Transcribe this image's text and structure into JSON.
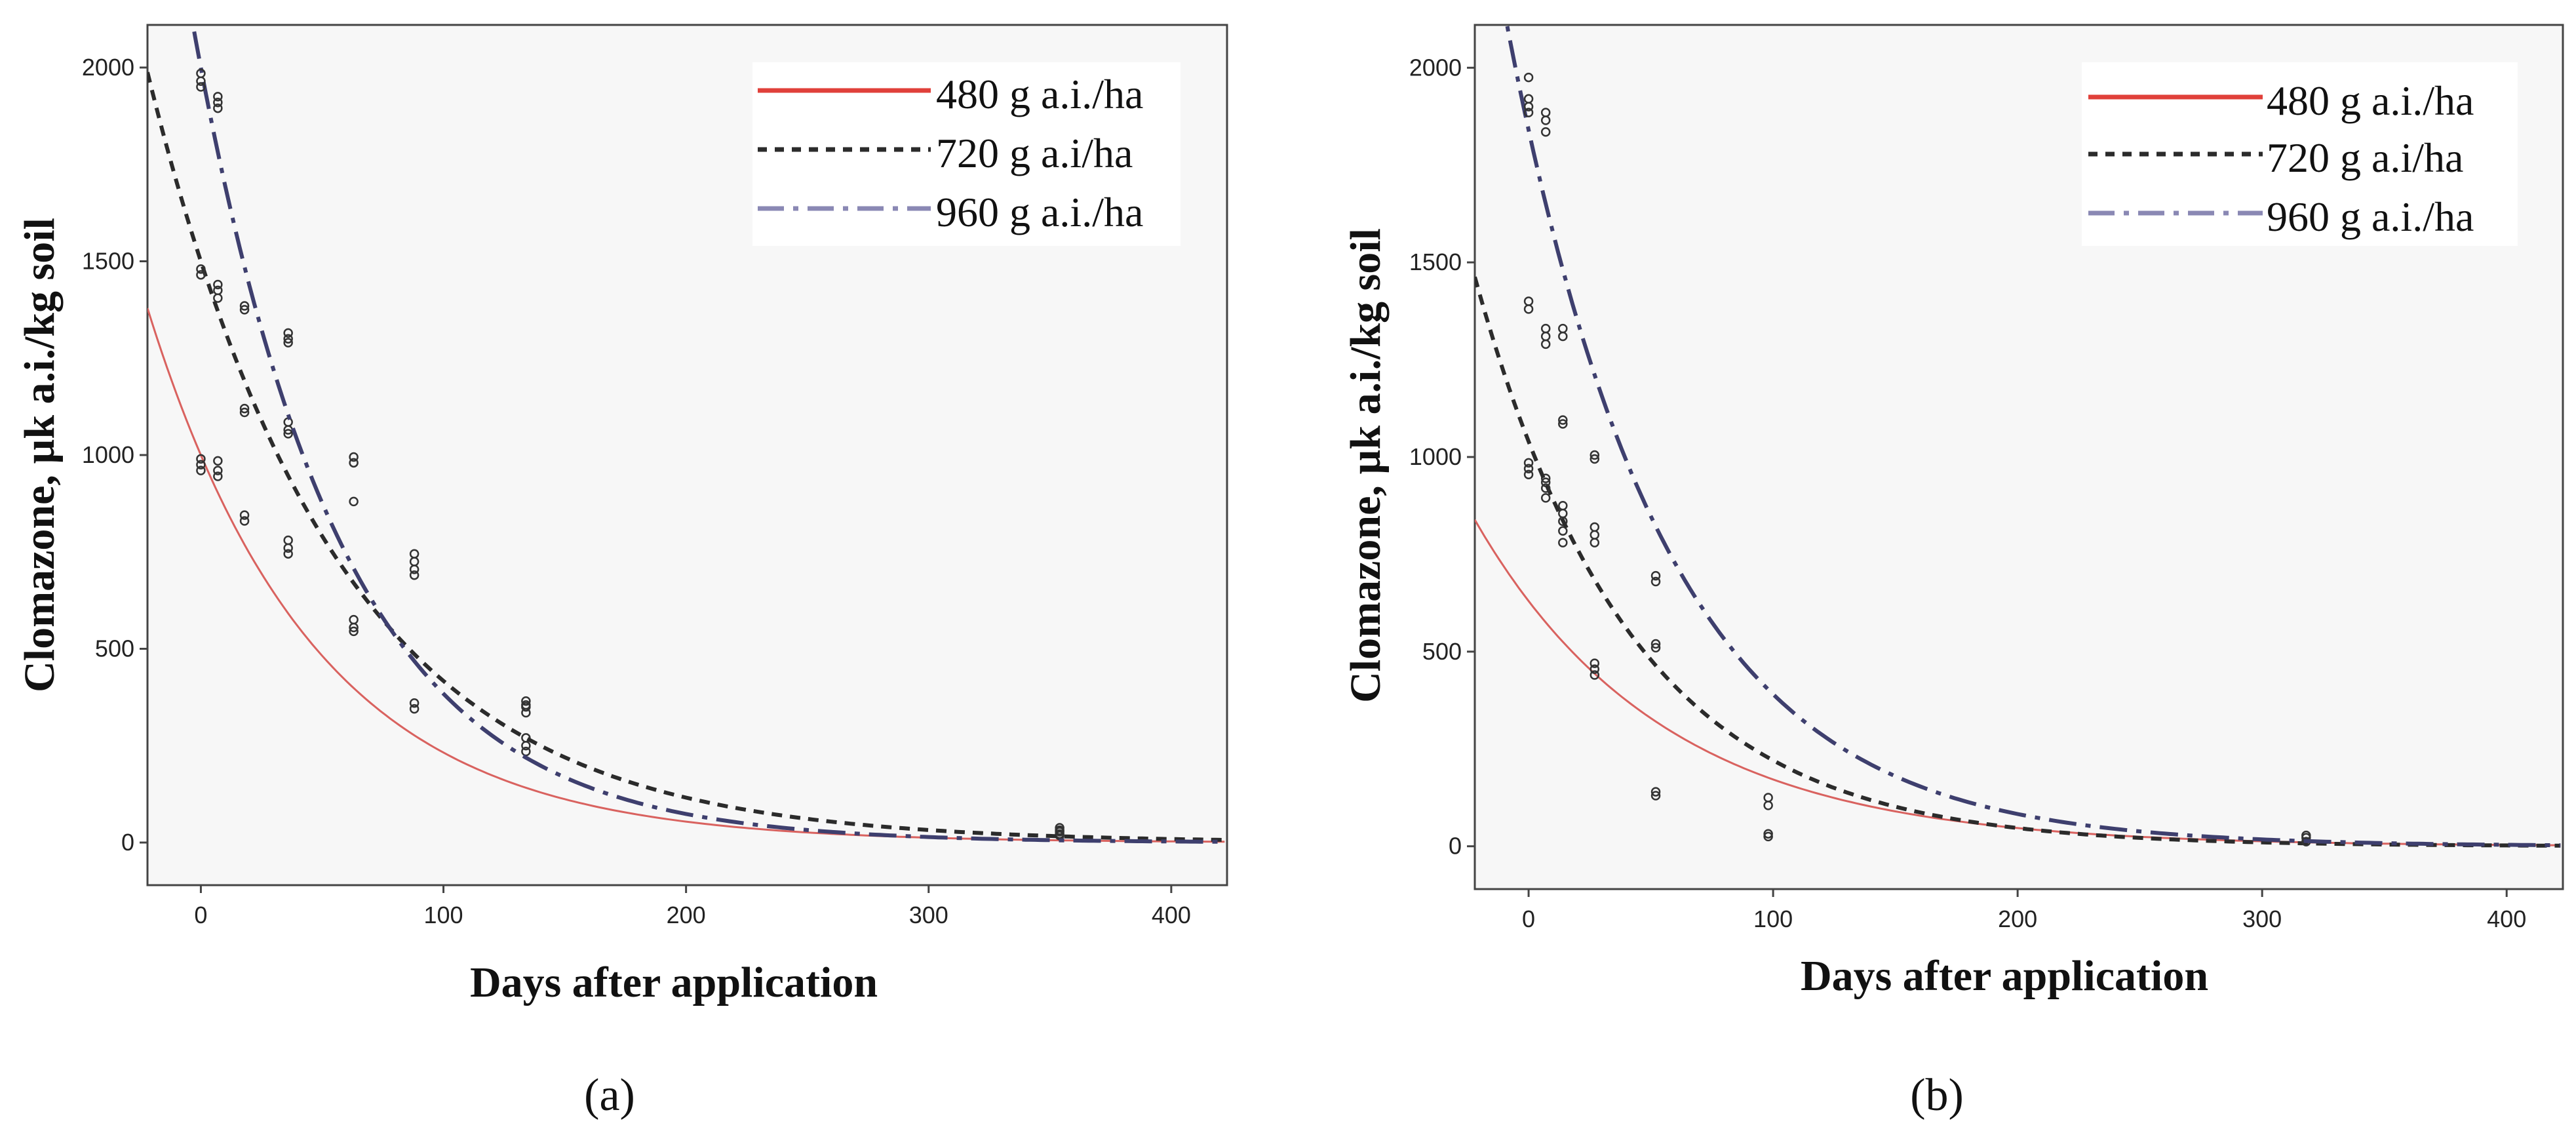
{
  "figure": {
    "panels": [
      "a",
      "b"
    ]
  },
  "colors": {
    "plot_bg": "#f7f7f7",
    "axis": "#444444",
    "s480": "#d9625f",
    "s720": "#2b2b2b",
    "s960": "#3e3f6e",
    "legend_s480": "#e0403a",
    "legend_s960": "#8a88b4",
    "marker": "#333333"
  },
  "chart_data": [
    {
      "type": "scatter",
      "panel_label": "(a)",
      "xlabel": "Days after application",
      "ylabel": "Clomazone, µk a.i./kg soil",
      "xlim": [
        -22,
        423
      ],
      "ylim": [
        -110,
        2110
      ],
      "xticks": [
        0,
        100,
        200,
        300,
        400
      ],
      "yticks": [
        0,
        500,
        1000,
        1500,
        2000
      ],
      "legend_position": "top-right",
      "series": [
        {
          "name": "480 g a.i./ha",
          "style": "solid",
          "fit": {
            "c0": 1000,
            "k": 0.0146
          },
          "points": [
            [
              0,
              960
            ],
            [
              0,
              975
            ],
            [
              0,
              990
            ],
            [
              7,
              945
            ],
            [
              7,
              960
            ],
            [
              7,
              985
            ],
            [
              18,
              830
            ],
            [
              18,
              845
            ],
            [
              36,
              745
            ],
            [
              36,
              760
            ],
            [
              36,
              780
            ],
            [
              88,
              345
            ],
            [
              88,
              360
            ],
            [
              134,
              235
            ],
            [
              134,
              250
            ],
            [
              134,
              270
            ],
            [
              354,
              18
            ],
            [
              354,
              22
            ]
          ]
        },
        {
          "name": "720 g a.i/ha",
          "style": "dashed",
          "fit": {
            "c0": 1500,
            "k": 0.0128
          },
          "points": [
            [
              0,
              1465
            ],
            [
              0,
              1480
            ],
            [
              7,
              1405
            ],
            [
              7,
              1425
            ],
            [
              7,
              1440
            ],
            [
              18,
              1110
            ],
            [
              18,
              1120
            ],
            [
              18,
              1375
            ],
            [
              18,
              1385
            ],
            [
              36,
              1055
            ],
            [
              36,
              1065
            ],
            [
              36,
              1085
            ],
            [
              63,
              545
            ],
            [
              63,
              555
            ],
            [
              63,
              575
            ],
            [
              134,
              335
            ],
            [
              134,
              350
            ],
            [
              354,
              28
            ]
          ]
        },
        {
          "name": "960 g a.i./ha",
          "style": "dashdot",
          "fit": {
            "c0": 2000,
            "k": 0.0165
          },
          "points": [
            [
              0,
              1950
            ],
            [
              0,
              1965
            ],
            [
              0,
              1985
            ],
            [
              7,
              1895
            ],
            [
              7,
              1910
            ],
            [
              7,
              1925
            ],
            [
              36,
              1290
            ],
            [
              36,
              1300
            ],
            [
              36,
              1315
            ],
            [
              63,
              880
            ],
            [
              63,
              980
            ],
            [
              63,
              995
            ],
            [
              88,
              690
            ],
            [
              88,
              705
            ],
            [
              88,
              725
            ],
            [
              88,
              745
            ],
            [
              134,
              355
            ],
            [
              134,
              365
            ],
            [
              354,
              32
            ],
            [
              354,
              38
            ]
          ]
        }
      ]
    },
    {
      "type": "scatter",
      "panel_label": "(b)",
      "xlabel": "Days after application",
      "ylabel": "Clomazone, µk a.i./kg soil",
      "xlim": [
        -22,
        423
      ],
      "ylim": [
        -110,
        2110
      ],
      "xticks": [
        0,
        100,
        200,
        300,
        400
      ],
      "yticks": [
        0,
        500,
        1000,
        1500,
        2000
      ],
      "legend_position": "top-right",
      "series": [
        {
          "name": "480 g a.i./ha",
          "style": "solid",
          "fit": {
            "c0": 630,
            "k": 0.013
          },
          "points": [
            [
              0,
              955
            ],
            [
              0,
              970
            ],
            [
              0,
              985
            ],
            [
              7,
              935
            ],
            [
              7,
              945
            ],
            [
              14,
              780
            ],
            [
              14,
              810
            ],
            [
              14,
              835
            ],
            [
              27,
              440
            ],
            [
              27,
              455
            ],
            [
              27,
              470
            ],
            [
              52,
              130
            ],
            [
              52,
              140
            ],
            [
              98,
              25
            ],
            [
              98,
              32
            ],
            [
              318,
              22
            ],
            [
              318,
              28
            ]
          ]
        },
        {
          "name": "720 g a.i/ha",
          "style": "dashed",
          "fit": {
            "c0": 1040,
            "k": 0.0155
          },
          "points": [
            [
              0,
              1380
            ],
            [
              0,
              1400
            ],
            [
              7,
              895
            ],
            [
              7,
              920
            ],
            [
              14,
              855
            ],
            [
              14,
              875
            ],
            [
              27,
              780
            ],
            [
              27,
              800
            ],
            [
              27,
              820
            ],
            [
              52,
              510
            ],
            [
              52,
              520
            ],
            [
              98,
              105
            ],
            [
              98,
              125
            ],
            [
              318,
              12
            ]
          ]
        },
        {
          "name": "960 g a.i./ha",
          "style": "dashdot",
          "fit": {
            "c0": 1840,
            "k": 0.0155
          },
          "points": [
            [
              0,
              1885
            ],
            [
              0,
              1900
            ],
            [
              0,
              1920
            ],
            [
              0,
              1975
            ],
            [
              7,
              1835
            ],
            [
              7,
              1865
            ],
            [
              7,
              1885
            ],
            [
              7,
              1290
            ],
            [
              7,
              1310
            ],
            [
              7,
              1330
            ],
            [
              14,
              1310
            ],
            [
              14,
              1330
            ],
            [
              14,
              1085
            ],
            [
              14,
              1095
            ],
            [
              27,
              995
            ],
            [
              27,
              1005
            ],
            [
              52,
              680
            ],
            [
              52,
              695
            ]
          ]
        }
      ]
    }
  ]
}
